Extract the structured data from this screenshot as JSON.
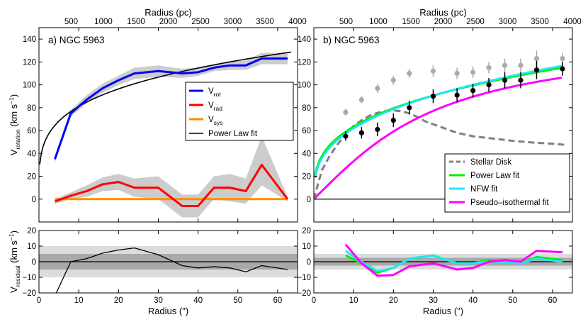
{
  "chart_data": [
    {
      "id": "a",
      "type": "line",
      "title": "a)  NGC 5963",
      "xlabel": "Radius (\")",
      "top_xlabel": "Radius (pc)",
      "ylabel": {
        "main": "V",
        "sub": "rotation",
        "unit": " (km s",
        "sup": "−1",
        "close": ")"
      },
      "xlim": [
        0,
        65
      ],
      "ylim": [
        -20,
        150
      ],
      "xticks": [
        "0",
        "10",
        "20",
        "30",
        "40",
        "50",
        "60"
      ],
      "yticks": [
        "0",
        "20",
        "40",
        "60",
        "80",
        "100",
        "120",
        "140"
      ],
      "top_ticks": [
        "500",
        "1000",
        "1500",
        "2000",
        "2500",
        "3000",
        "3500",
        "4000"
      ],
      "top_tick_x": [
        8.1,
        16.2,
        24.4,
        32.5,
        40.6,
        48.7,
        56.8,
        65.0
      ],
      "series": [
        {
          "name": "V_rot",
          "color": "#0000ff",
          "x": [
            4,
            8,
            12,
            16,
            20,
            24,
            30,
            36,
            40,
            44,
            48,
            52,
            56,
            62.5
          ],
          "y": [
            35,
            75,
            87,
            97,
            104,
            110,
            112,
            110,
            111,
            115,
            117,
            117,
            123,
            123
          ],
          "band_lo": [
            32,
            72,
            84,
            93,
            100,
            105,
            107,
            106,
            108,
            112,
            113,
            113,
            118,
            118
          ],
          "band_hi": [
            38,
            78,
            91,
            101,
            108,
            115,
            117,
            114,
            115,
            118,
            121,
            121,
            128,
            128
          ]
        },
        {
          "name": "V_rad",
          "color": "#ff0000",
          "x": [
            4,
            8,
            12,
            16,
            20,
            24,
            30,
            36,
            40,
            44,
            48,
            52,
            56,
            62.5
          ],
          "y": [
            -2,
            3,
            7,
            13,
            15,
            10,
            10,
            -6,
            -6,
            10,
            10,
            7,
            30,
            0
          ],
          "band_lo": [
            -4,
            0,
            2,
            7,
            8,
            2,
            0,
            -16,
            -16,
            0,
            -2,
            -4,
            12,
            -2
          ],
          "band_hi": [
            0,
            6,
            12,
            19,
            22,
            18,
            20,
            4,
            4,
            20,
            22,
            18,
            55,
            2
          ]
        },
        {
          "name": "V_sys",
          "color": "#ff8c00",
          "x": [
            4,
            62.5
          ],
          "y": [
            0,
            0
          ]
        },
        {
          "name": "Power Law fit",
          "color": "#000000",
          "model": "power",
          "coef": 45.6,
          "exp": 0.25
        }
      ],
      "legend": [
        {
          "main": "V",
          "sub": "rot",
          "color": "#0000ff"
        },
        {
          "main": "V",
          "sub": "rad",
          "color": "#ff0000"
        },
        {
          "main": "V",
          "sub": "sys",
          "color": "#ff8c00"
        },
        {
          "main": "Power Law fit",
          "sub": "",
          "color": "#000000"
        }
      ],
      "legend_position": "center-right"
    },
    {
      "id": "b",
      "type": "scatter",
      "title": "b)  NGC 5963",
      "xlabel": "Radius (\")",
      "top_xlabel": "Radius (pc)",
      "xlim": [
        0,
        65
      ],
      "ylim": [
        -20,
        150
      ],
      "xticks": [
        "0",
        "10",
        "20",
        "30",
        "40",
        "50",
        "60"
      ],
      "yticks": [
        "0",
        "20",
        "40",
        "60",
        "80",
        "100",
        "120",
        "140"
      ],
      "top_ticks": [
        "500",
        "1000",
        "1500",
        "2000",
        "2500",
        "3000",
        "3500",
        "4000"
      ],
      "top_tick_x": [
        8.1,
        16.2,
        24.4,
        32.5,
        40.6,
        48.7,
        56.8,
        65.0
      ],
      "points_observed": {
        "color": "#000000",
        "x": [
          8,
          12,
          16,
          20,
          24,
          30,
          36,
          40,
          44,
          48,
          52,
          56,
          62.5
        ],
        "y": [
          55,
          58,
          61,
          69,
          80,
          90,
          91,
          95,
          100,
          104,
          104,
          113,
          114
        ],
        "err": [
          4,
          5,
          6,
          6,
          6,
          6,
          6,
          6,
          6,
          7,
          7,
          8,
          6
        ]
      },
      "points_total": {
        "color": "#aaaaaa",
        "x": [
          8,
          12,
          16,
          20,
          24,
          30,
          36,
          40,
          44,
          48,
          52,
          56,
          62.5
        ],
        "y": [
          76,
          87,
          97,
          104,
          110,
          112,
          110,
          111,
          115,
          117,
          117,
          123,
          123
        ],
        "err": [
          3,
          3,
          4,
          4,
          4,
          5,
          5,
          5,
          5,
          6,
          6,
          7,
          5
        ]
      },
      "series": [
        {
          "name": "Stellar Disk",
          "color": "#808080",
          "dash": true,
          "x": [
            0,
            2,
            4,
            6,
            8,
            10,
            12,
            14,
            16,
            18,
            20,
            22,
            24,
            26,
            28,
            32,
            36,
            40,
            45,
            50,
            55,
            60,
            63
          ],
          "y": [
            0,
            25,
            38,
            48,
            57,
            64,
            69,
            73,
            75.5,
            77,
            77.5,
            77,
            75,
            72,
            68,
            63,
            58,
            55,
            53,
            51,
            49.5,
            48.5,
            47.5
          ]
        },
        {
          "name": "Power Law fit",
          "color": "#00ee00",
          "model": "power",
          "coef": 30,
          "exp": 0.325
        },
        {
          "name": "NFW fit",
          "color": "#22e5f2",
          "model": "power",
          "coef": 28,
          "exp": 0.345
        },
        {
          "name": "Pseudo–isothermal fit",
          "color": "#ff00ff",
          "model": "iso",
          "vinf": 145,
          "rc": 24
        }
      ],
      "legend": [
        {
          "main": "Stellar Disk",
          "color": "#808080",
          "dash": true
        },
        {
          "main": "Power Law fit",
          "color": "#00ee00"
        },
        {
          "main": "NFW fit",
          "color": "#22e5f2"
        },
        {
          "main": "Pseudo–isothermal fit",
          "color": "#ff00ff"
        }
      ],
      "legend_position": "lower-right"
    },
    {
      "id": "a-residual",
      "type": "line",
      "xlabel": "Radius (\")",
      "ylabel": {
        "main": "V",
        "sub": "residual",
        "unit": " (km s",
        "sup": "−1",
        "close": ")"
      },
      "xlim": [
        0,
        65
      ],
      "ylim": [
        -20,
        20
      ],
      "xticks": [
        "0",
        "10",
        "20",
        "30",
        "40",
        "50",
        "60"
      ],
      "yticks": [
        "−20",
        "−10",
        "0",
        "10",
        "20"
      ],
      "bands": [
        {
          "lo": -10,
          "hi": 10,
          "color": "#dcdcdc"
        },
        {
          "lo": -5,
          "hi": 5,
          "color": "#a9a9a9"
        }
      ],
      "series": [
        {
          "name": "Power Law residual",
          "color": "#000000",
          "x": [
            4,
            8,
            12,
            16,
            20,
            24,
            30,
            36,
            40,
            44,
            48,
            52,
            56,
            62.5
          ],
          "y": [
            -22,
            0,
            2,
            5.5,
            7.5,
            8.8,
            4.5,
            -2.5,
            -4,
            -3.2,
            -4,
            -6.5,
            -2.5,
            -5
          ]
        }
      ]
    },
    {
      "id": "b-residual",
      "type": "line",
      "xlabel": "Radius (\")",
      "xlim": [
        0,
        65
      ],
      "ylim": [
        -20,
        20
      ],
      "xticks": [
        "0",
        "10",
        "20",
        "30",
        "40",
        "50",
        "60"
      ],
      "yticks": [
        "−20",
        "−10",
        "0",
        "10",
        "20"
      ],
      "bands": [
        {
          "lo": -5,
          "hi": 5,
          "color": "#dcdcdc"
        },
        {
          "lo": -2.5,
          "hi": 2.5,
          "color": "#a9a9a9"
        }
      ],
      "series": [
        {
          "name": "Power Law residual",
          "color": "#00ee00",
          "x": [
            8,
            12,
            16,
            20,
            24,
            30,
            36,
            40,
            44,
            48,
            52,
            56,
            62.5
          ],
          "y": [
            4,
            -1,
            -7,
            -4,
            2,
            4,
            -1,
            -1,
            1,
            0,
            -1,
            3,
            1
          ]
        },
        {
          "name": "NFW residual",
          "color": "#22e5f2",
          "x": [
            8,
            12,
            16,
            20,
            24,
            30,
            36,
            40,
            44,
            48,
            52,
            56,
            62.5
          ],
          "y": [
            7,
            0,
            -6,
            -4,
            2,
            4,
            -1,
            -1,
            0,
            0,
            -1,
            2,
            0
          ]
        },
        {
          "name": "Pseudo–isothermal residual",
          "color": "#ff00ff",
          "x": [
            8,
            12,
            16,
            20,
            24,
            30,
            36,
            40,
            44,
            48,
            52,
            56,
            62.5
          ],
          "y": [
            11,
            -1,
            -9,
            -8.5,
            -3,
            -1,
            -5,
            -4,
            0,
            1,
            0,
            7,
            6
          ]
        }
      ]
    }
  ]
}
